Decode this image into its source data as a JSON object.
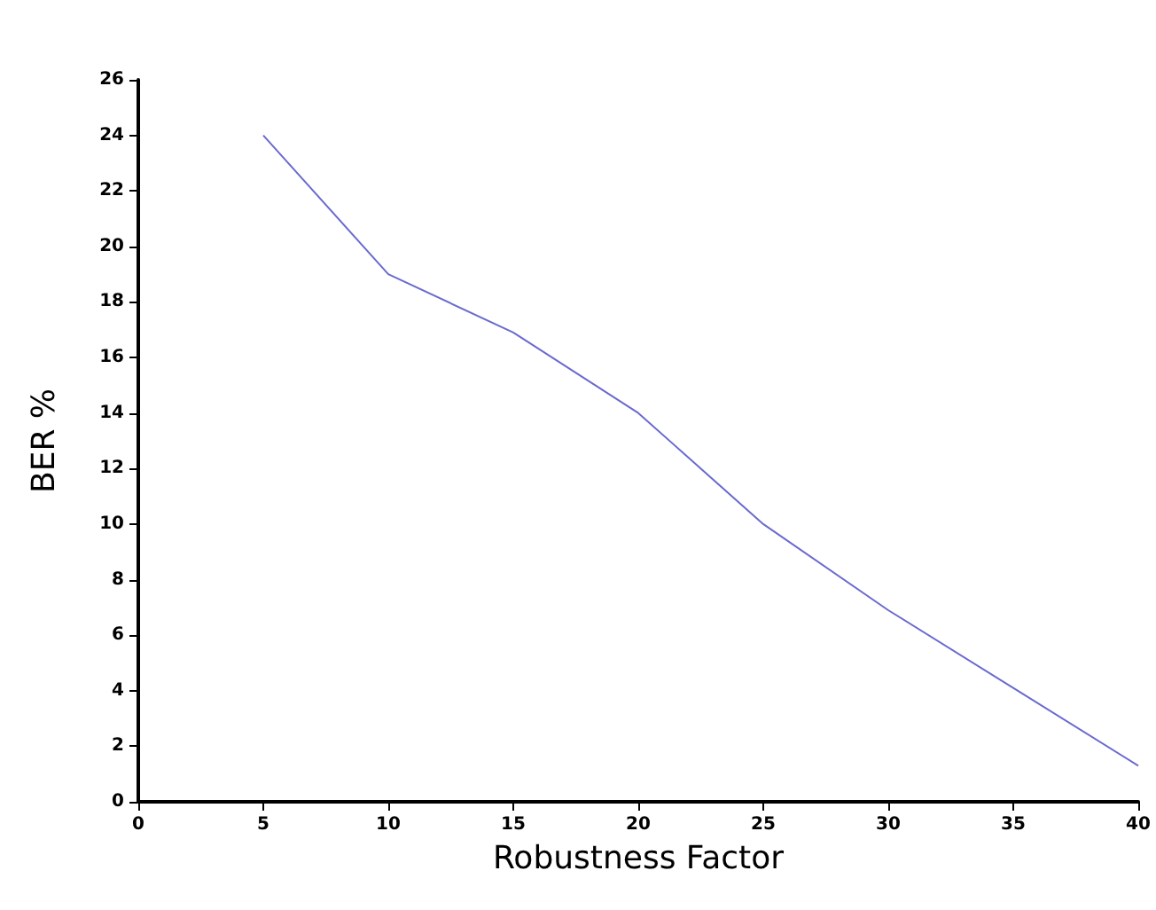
{
  "chart_data": {
    "type": "line",
    "xlabel": "Robustness Factor",
    "ylabel": "BER %",
    "x": [
      5,
      10,
      15,
      20,
      25,
      30,
      35,
      40
    ],
    "series": [
      {
        "color": "#6a6ad0",
        "values": [
          24,
          19,
          16.9,
          14,
          10,
          6.9,
          4.1,
          1.3
        ]
      }
    ],
    "xlim": [
      0,
      40
    ],
    "xticks": [
      0,
      5,
      10,
      15,
      20,
      25,
      30,
      35,
      40
    ],
    "ylim": [
      0,
      26
    ],
    "yticks": [
      0,
      2,
      4,
      6,
      8,
      10,
      12,
      14,
      16,
      18,
      20,
      22,
      24,
      26
    ],
    "grid": false,
    "marker": "none",
    "line_style": "solid",
    "legend": false
  }
}
